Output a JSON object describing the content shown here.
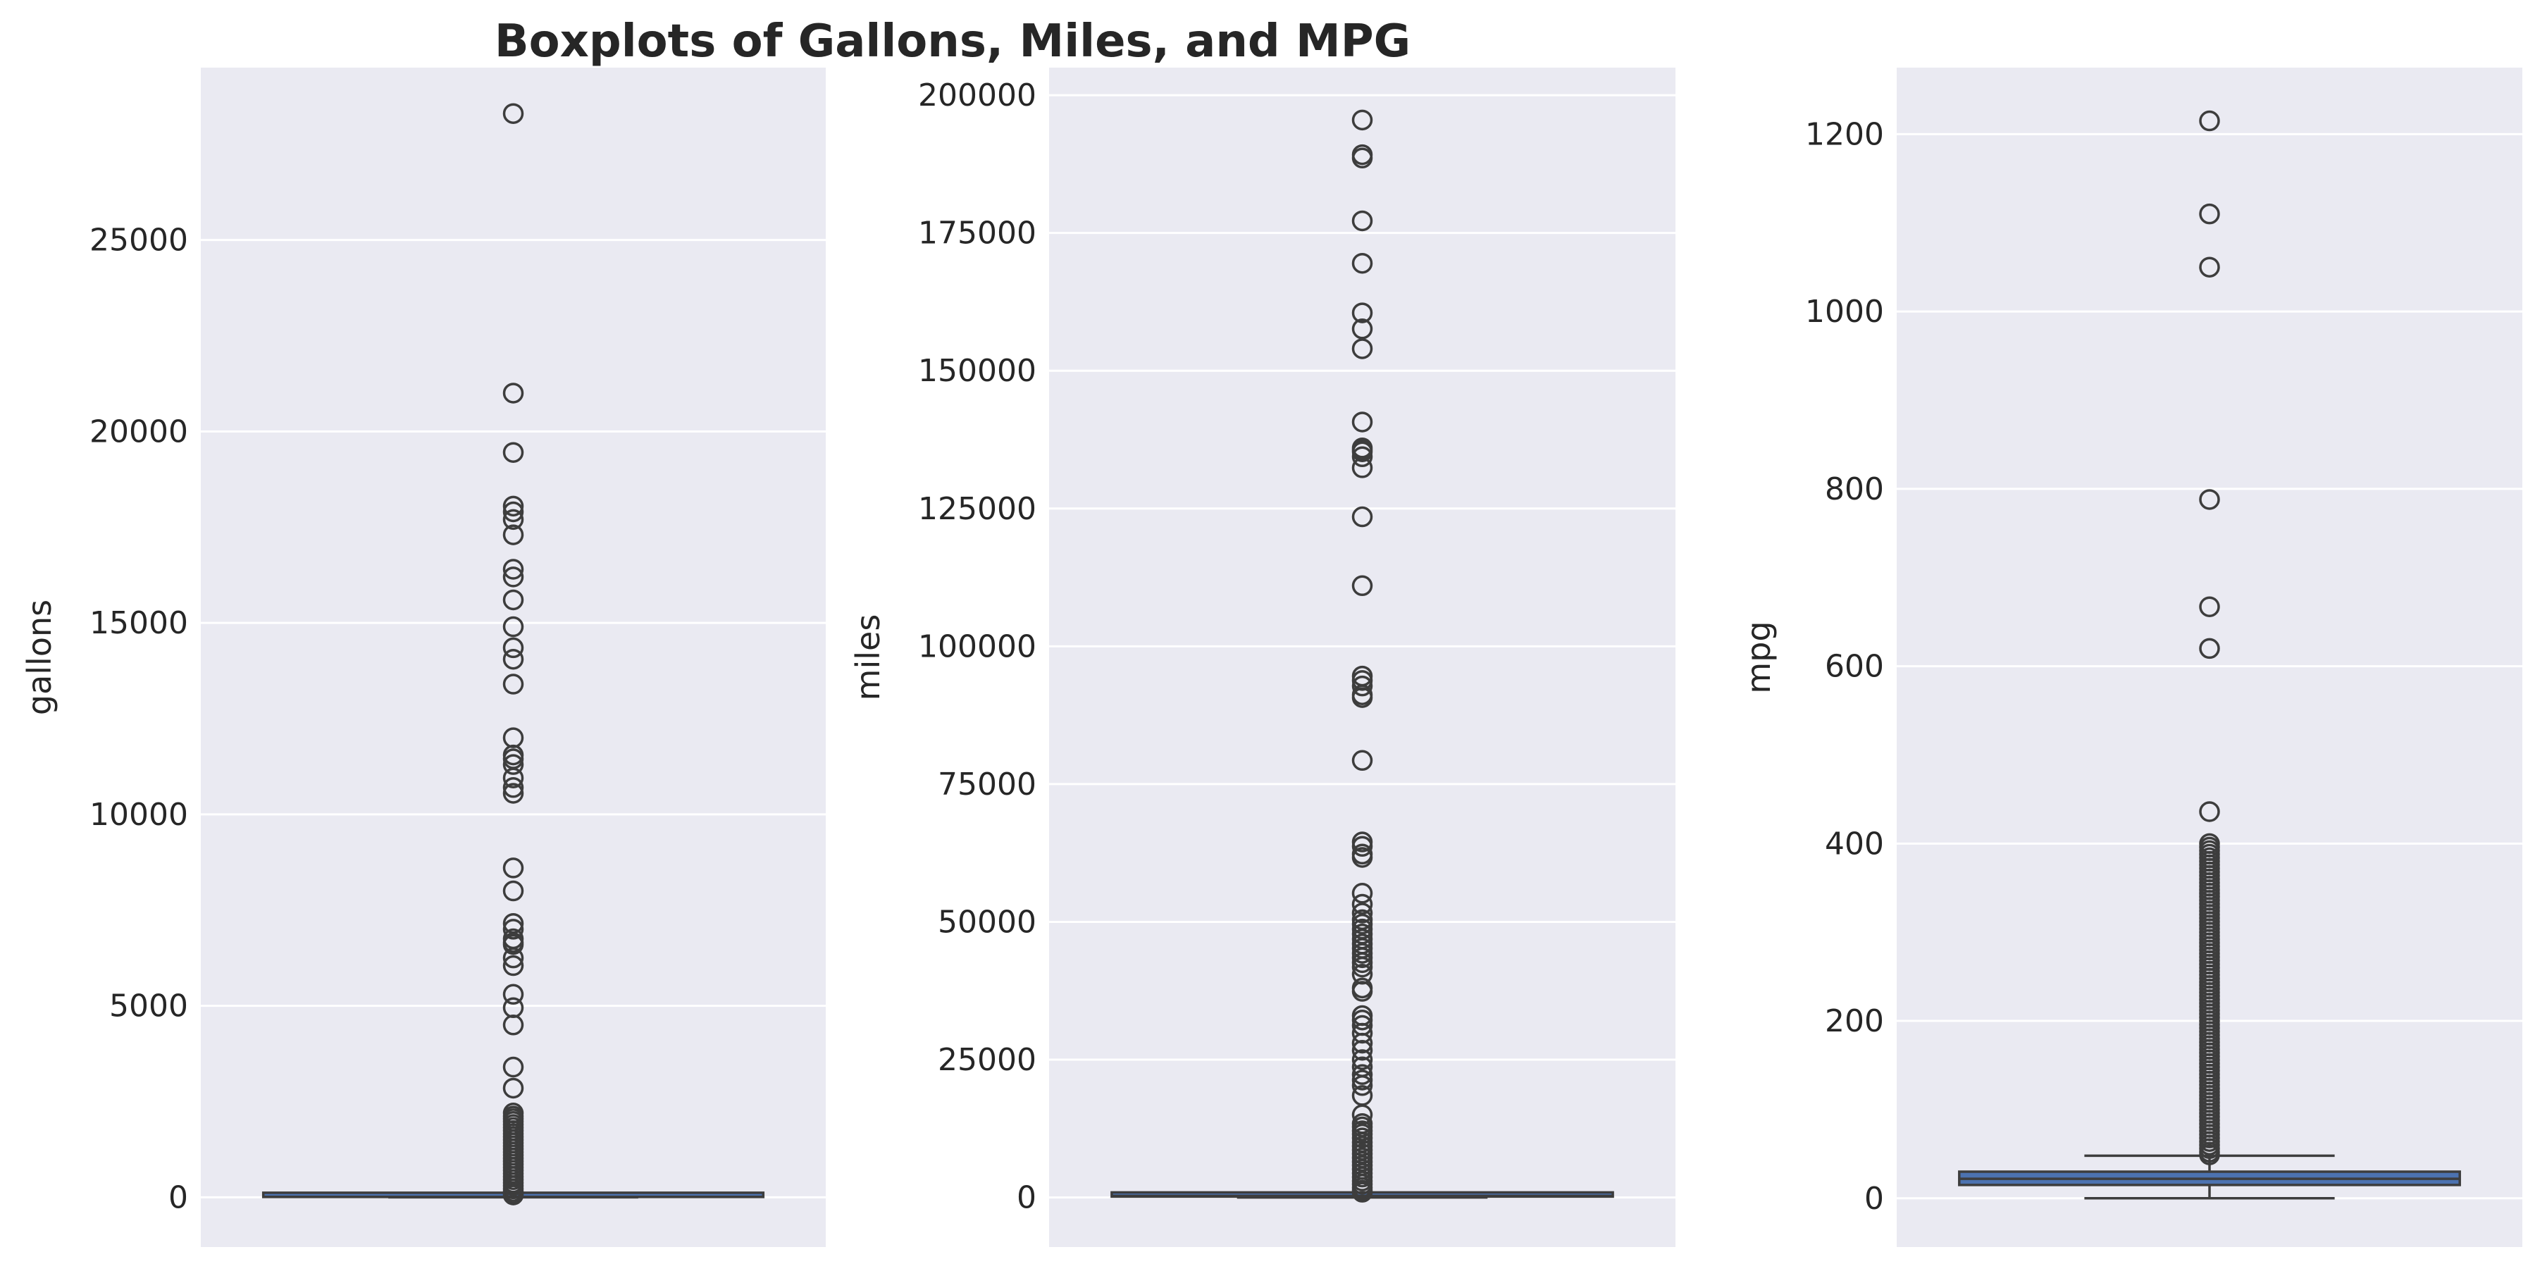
{
  "title": "Boxplots of Gallons, Miles, and MPG",
  "colors": {
    "panel_background": "#eaeaf2",
    "grid": "#ffffff",
    "box_fill": "#4c72b0",
    "line": "#3d3d3d",
    "text": "#262626"
  },
  "chart_data": [
    {
      "type": "box",
      "ylabel": "gallons",
      "ylim": [
        -1300,
        29500
      ],
      "yticks": [
        0,
        5000,
        10000,
        15000,
        20000,
        25000
      ],
      "ytick_labels": [
        "0",
        "5000",
        "10000",
        "15000",
        "20000",
        "25000"
      ],
      "grid": true,
      "box": {
        "whisker_low": 0,
        "q1": 8,
        "median": 12,
        "q3": 18,
        "whisker_high": 35
      },
      "outliers": [
        28300,
        21000,
        19450,
        18050,
        17900,
        17700,
        17300,
        16400,
        16200,
        15600,
        14900,
        14350,
        14050,
        13400,
        12000,
        11550,
        11450,
        11300,
        10950,
        10700,
        10550,
        8600,
        8000,
        7150,
        7000,
        6750,
        6650,
        6600,
        6250,
        6050,
        5300,
        4950,
        4500,
        3400,
        2850,
        2200,
        2120,
        2050,
        1980,
        1900,
        1820,
        1740,
        1660,
        1580,
        1500,
        1420,
        1340,
        1260,
        1180,
        1100,
        1020,
        940,
        860,
        780,
        700,
        620,
        540,
        460,
        380,
        300,
        220,
        150,
        90,
        60
      ]
    },
    {
      "type": "box",
      "ylabel": "miles",
      "ylim": [
        -9000,
        205000
      ],
      "yticks": [
        0,
        25000,
        50000,
        75000,
        100000,
        125000,
        150000,
        175000,
        200000
      ],
      "ytick_labels": [
        "0",
        "25000",
        "50000",
        "75000",
        "100000",
        "125000",
        "150000",
        "175000",
        "200000"
      ],
      "grid": true,
      "box": {
        "whisker_low": 0,
        "q1": 150,
        "median": 280,
        "q3": 420,
        "whisker_high": 800
      },
      "outliers": [
        195500,
        189200,
        188600,
        177200,
        169500,
        160500,
        157600,
        154000,
        140700,
        136000,
        135600,
        135300,
        134400,
        132400,
        123500,
        111000,
        94600,
        93800,
        92800,
        91200,
        90700,
        79300,
        64500,
        63700,
        62300,
        61700,
        55200,
        53200,
        51600,
        50400,
        49600,
        48700,
        47800,
        46900,
        46000,
        45200,
        44300,
        43500,
        42600,
        41800,
        40500,
        38000,
        37400,
        33000,
        32200,
        31200,
        29800,
        28000,
        26700,
        25000,
        23700,
        22300,
        21300,
        20300,
        18500,
        15000,
        13400,
        12800,
        12100,
        11500,
        10800,
        10000,
        9300,
        8600,
        7900,
        7200,
        6500,
        5800,
        5100,
        4400,
        3700,
        3000,
        2400,
        1800,
        1300,
        950
      ]
    },
    {
      "type": "box",
      "ylabel": "mpg",
      "ylim": [
        -55,
        1275
      ],
      "yticks": [
        0,
        200,
        400,
        600,
        800,
        1000,
        1200
      ],
      "ytick_labels": [
        "0",
        "200",
        "400",
        "600",
        "800",
        "1000",
        "1200"
      ],
      "grid": true,
      "box": {
        "whisker_low": 0,
        "q1": 15,
        "median": 22,
        "q3": 30,
        "whisker_high": 48
      },
      "outliers": [
        1215,
        1110,
        1050,
        788,
        667,
        620,
        436,
        400,
        396,
        392,
        388,
        384,
        380,
        376,
        372,
        368,
        364,
        360,
        356,
        352,
        348,
        344,
        340,
        336,
        332,
        328,
        324,
        320,
        316,
        312,
        308,
        304,
        300,
        296,
        292,
        288,
        284,
        280,
        276,
        272,
        268,
        264,
        260,
        256,
        252,
        248,
        244,
        240,
        236,
        232,
        228,
        224,
        220,
        216,
        212,
        208,
        204,
        200,
        196,
        192,
        188,
        184,
        180,
        176,
        172,
        168,
        164,
        160,
        156,
        152,
        148,
        144,
        140,
        136,
        132,
        128,
        124,
        120,
        116,
        112,
        108,
        104,
        100,
        96,
        92,
        88,
        84,
        80,
        76,
        72,
        68,
        64,
        60,
        56,
        52,
        49
      ]
    }
  ]
}
